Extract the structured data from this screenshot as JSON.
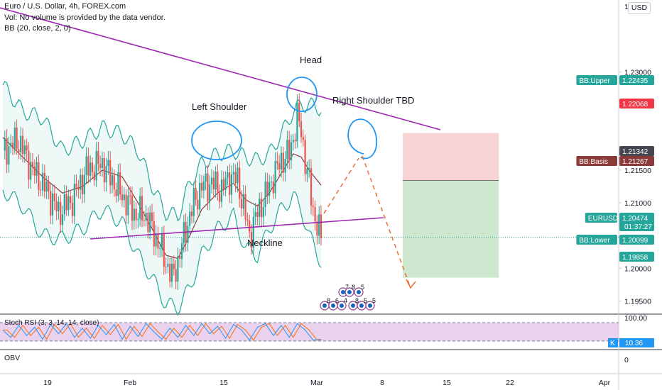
{
  "header": {
    "title": "Euro / U.S. Dollar, 4h, FOREX.com",
    "volume_note": "Vol: No volume is provided by the data vendor.",
    "bb_label": "BB (20, close, 2, 0)",
    "currency_button": "USD"
  },
  "colors": {
    "candle_up": "#26a69a",
    "candle_down": "#ef5350",
    "bb_band": "#26a69a",
    "bb_basis": "#8b3a3a",
    "trendline": "#9c27b0",
    "annotation_blue": "#2196f3",
    "projection": "#ef6c3a",
    "stoch_k": "#2196f3",
    "stoch_d": "#ff6d00",
    "stoch_fill": "#e1bee7",
    "risk_zone": "#f8c9c9",
    "reward_zone": "#c8e6c9"
  },
  "chart_data": [
    {
      "type": "candlestick",
      "title": "Euro / U.S. Dollar, 4h, FOREX.com",
      "indicator": "BB (20, close, 2, 0)",
      "ylim": [
        1.193,
        1.241
      ],
      "y_ticks": [
        "1.19500",
        "1.20000",
        "1.21000",
        "1.21500",
        "1.22500",
        "1.23000"
      ],
      "top_tick_partial": "1.",
      "x_ticks": [
        "19",
        "Feb",
        "15",
        "Mar",
        "8",
        "15",
        "22",
        "Apr"
      ],
      "price_samples": [
        [
          0,
          1.218
        ],
        [
          8,
          1.2195
        ],
        [
          15,
          1.215
        ],
        [
          22,
          1.212
        ],
        [
          28,
          1.2085
        ],
        [
          35,
          1.2105
        ],
        [
          42,
          1.215
        ],
        [
          50,
          1.216
        ],
        [
          58,
          1.212
        ],
        [
          66,
          1.2085
        ],
        [
          72,
          1.208
        ],
        [
          78,
          1.204
        ],
        [
          82,
          1.201
        ],
        [
          85,
          1.1985
        ],
        [
          88,
          1.201
        ],
        [
          92,
          1.206
        ],
        [
          96,
          1.21
        ],
        [
          100,
          1.2125
        ],
        [
          105,
          1.213
        ],
        [
          110,
          1.212
        ],
        [
          114,
          1.214
        ],
        [
          118,
          1.2135
        ],
        [
          122,
          1.208
        ],
        [
          124,
          1.205
        ],
        [
          128,
          1.2085
        ],
        [
          132,
          1.211
        ],
        [
          136,
          1.214
        ],
        [
          140,
          1.2165
        ],
        [
          144,
          1.2175
        ],
        [
          146,
          1.22
        ],
        [
          148,
          1.223
        ],
        [
          150,
          1.221
        ],
        [
          152,
          1.2165
        ],
        [
          154,
          1.213
        ],
        [
          156,
          1.209
        ],
        [
          158,
          1.2065
        ],
        [
          160,
          1.2047
        ]
      ],
      "bb_upper_samples": [
        [
          0,
          1.228
        ],
        [
          10,
          1.224
        ],
        [
          20,
          1.223
        ],
        [
          30,
          1.218
        ],
        [
          40,
          1.2195
        ],
        [
          50,
          1.2215
        ],
        [
          60,
          1.2205
        ],
        [
          68,
          1.218
        ],
        [
          76,
          1.212
        ],
        [
          82,
          1.2085
        ],
        [
          88,
          1.208
        ],
        [
          94,
          1.213
        ],
        [
          100,
          1.216
        ],
        [
          108,
          1.2175
        ],
        [
          116,
          1.218
        ],
        [
          122,
          1.217
        ],
        [
          128,
          1.2165
        ],
        [
          134,
          1.2175
        ],
        [
          140,
          1.2205
        ],
        [
          146,
          1.224
        ],
        [
          150,
          1.225
        ],
        [
          154,
          1.225
        ],
        [
          160,
          1.2244
        ]
      ],
      "bb_lower_samples": [
        [
          0,
          1.212
        ],
        [
          10,
          1.2095
        ],
        [
          20,
          1.205
        ],
        [
          30,
          1.2045
        ],
        [
          40,
          1.206
        ],
        [
          50,
          1.209
        ],
        [
          60,
          1.207
        ],
        [
          68,
          1.202
        ],
        [
          76,
          1.198
        ],
        [
          82,
          1.1945
        ],
        [
          88,
          1.194
        ],
        [
          94,
          1.197
        ],
        [
          100,
          1.202
        ],
        [
          108,
          1.206
        ],
        [
          116,
          1.208
        ],
        [
          122,
          1.203
        ],
        [
          128,
          1.202
        ],
        [
          134,
          1.206
        ],
        [
          140,
          1.209
        ],
        [
          146,
          1.211
        ],
        [
          150,
          1.209
        ],
        [
          154,
          1.205
        ],
        [
          160,
          1.201
        ]
      ],
      "bb_basis_samples": [
        [
          0,
          1.22
        ],
        [
          10,
          1.217
        ],
        [
          20,
          1.214
        ],
        [
          30,
          1.2115
        ],
        [
          40,
          1.2125
        ],
        [
          50,
          1.215
        ],
        [
          60,
          1.214
        ],
        [
          68,
          1.21
        ],
        [
          76,
          1.2055
        ],
        [
          82,
          1.202
        ],
        [
          88,
          1.2015
        ],
        [
          94,
          1.205
        ],
        [
          100,
          1.209
        ],
        [
          108,
          1.2115
        ],
        [
          116,
          1.213
        ],
        [
          122,
          1.2105
        ],
        [
          128,
          1.2095
        ],
        [
          134,
          1.2115
        ],
        [
          140,
          1.2145
        ],
        [
          146,
          1.2175
        ],
        [
          150,
          1.217
        ],
        [
          154,
          1.215
        ],
        [
          160,
          1.2127
        ]
      ],
      "price_tags": [
        {
          "label": "BB:Upper",
          "value": "1.22435",
          "color": "#26a69a"
        },
        {
          "label": "",
          "value": "1.22068",
          "color": "#f23645"
        },
        {
          "label": "",
          "value": "1.21342",
          "color": "#434651"
        },
        {
          "label": "BB:Basis",
          "value": "1.21267",
          "color": "#8b3a3a"
        },
        {
          "label": "EURUSD",
          "value": "1.20474",
          "sub": "01:37:27",
          "color": "#26a69a"
        },
        {
          "label": "BB:Lower",
          "value": "1.20099",
          "color": "#26a69a"
        },
        {
          "label": "",
          "value": "1.19858",
          "color": "#26a69a"
        }
      ],
      "annotations": [
        "Head",
        "Left Shoulder",
        "Right Shoulder TBD",
        "Neckline"
      ],
      "event_icons": [
        "7",
        "8",
        "5",
        "8",
        "6",
        "4",
        "8",
        "5",
        "5"
      ]
    },
    {
      "type": "line",
      "title": "Stoch RSI (3, 3, 14, 14, close)",
      "ylim": [
        0,
        100
      ],
      "y_ticks": [
        "100.00"
      ],
      "current": {
        "label": "K",
        "value": "10.36"
      },
      "k_samples": [
        [
          0,
          60
        ],
        [
          4,
          20
        ],
        [
          8,
          85
        ],
        [
          12,
          30
        ],
        [
          16,
          75
        ],
        [
          20,
          10
        ],
        [
          24,
          90
        ],
        [
          28,
          40
        ],
        [
          32,
          95
        ],
        [
          36,
          20
        ],
        [
          40,
          70
        ],
        [
          44,
          15
        ],
        [
          48,
          85
        ],
        [
          52,
          35
        ],
        [
          56,
          90
        ],
        [
          60,
          10
        ],
        [
          64,
          80
        ],
        [
          68,
          25
        ],
        [
          72,
          95
        ],
        [
          76,
          50
        ],
        [
          80,
          10
        ],
        [
          84,
          70
        ],
        [
          88,
          20
        ],
        [
          92,
          85
        ],
        [
          96,
          30
        ],
        [
          100,
          95
        ],
        [
          104,
          40
        ],
        [
          108,
          80
        ],
        [
          112,
          15
        ],
        [
          116,
          90
        ],
        [
          120,
          60
        ],
        [
          124,
          5
        ],
        [
          128,
          75
        ],
        [
          132,
          95
        ],
        [
          136,
          30
        ],
        [
          140,
          85
        ],
        [
          144,
          20
        ],
        [
          148,
          95
        ],
        [
          152,
          60
        ],
        [
          156,
          5
        ],
        [
          160,
          10
        ]
      ]
    },
    {
      "type": "line",
      "title": "OBV",
      "y_ticks": [
        "0"
      ]
    }
  ]
}
